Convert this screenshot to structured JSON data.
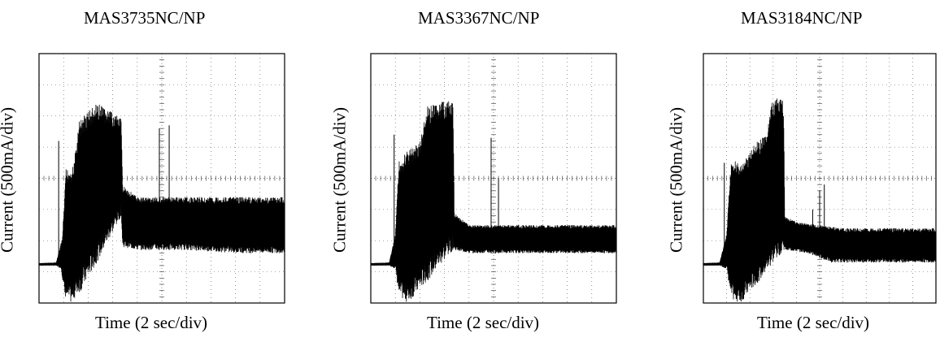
{
  "chart_data": [
    {
      "type": "line",
      "title": "MAS3735NC/NP",
      "xlabel": "Time (2 sec/div)",
      "ylabel": "Current (500mA/div)",
      "xlim": [
        0,
        10
      ],
      "ylim": [
        0,
        8
      ],
      "grid": true,
      "series": [
        {
          "envelope_upper": [
            [
              0,
              1.28
            ],
            [
              0.7,
              1.3
            ],
            [
              0.95,
              2.1
            ],
            [
              1.1,
              4.3
            ],
            [
              1.4,
              4.4
            ],
            [
              1.65,
              5.9
            ],
            [
              2.0,
              6.2
            ],
            [
              2.4,
              6.4
            ],
            [
              3.0,
              6.1
            ],
            [
              3.35,
              5.9
            ],
            [
              3.4,
              3.8
            ],
            [
              4.0,
              3.4
            ],
            [
              6.0,
              3.4
            ],
            [
              8.0,
              3.4
            ],
            [
              10,
              3.4
            ]
          ],
          "envelope_lower": [
            [
              0,
              1.2
            ],
            [
              0.7,
              1.2
            ],
            [
              0.9,
              1.1
            ],
            [
              1.05,
              0.2
            ],
            [
              1.3,
              0.0
            ],
            [
              1.8,
              0.5
            ],
            [
              2.5,
              1.5
            ],
            [
              3.35,
              2.8
            ],
            [
              3.4,
              1.8
            ],
            [
              4.0,
              1.7
            ],
            [
              6.0,
              1.7
            ],
            [
              8.0,
              1.6
            ],
            [
              10,
              1.6
            ]
          ],
          "spikes": [
            [
              0.8,
              5.2
            ],
            [
              1.7,
              5.4
            ],
            [
              4.9,
              5.6
            ],
            [
              5.3,
              5.7
            ]
          ]
        }
      ]
    },
    {
      "type": "line",
      "title": "MAS3367NC/NP",
      "xlabel": "Time (2 sec/div)",
      "ylabel": "Current (500mA/div)",
      "xlim": [
        0,
        10
      ],
      "ylim": [
        0,
        8
      ],
      "grid": true,
      "series": [
        {
          "envelope_upper": [
            [
              0,
              1.28
            ],
            [
              0.75,
              1.3
            ],
            [
              1.0,
              2.2
            ],
            [
              1.15,
              4.6
            ],
            [
              1.5,
              4.9
            ],
            [
              2.0,
              5.2
            ],
            [
              2.3,
              6.3
            ],
            [
              3.1,
              6.5
            ],
            [
              3.35,
              6.4
            ],
            [
              3.4,
              2.9
            ],
            [
              4.0,
              2.5
            ],
            [
              10,
              2.5
            ]
          ],
          "envelope_lower": [
            [
              0,
              1.2
            ],
            [
              0.75,
              1.2
            ],
            [
              1.0,
              1.1
            ],
            [
              1.15,
              0.2
            ],
            [
              1.5,
              0.0
            ],
            [
              2.2,
              0.6
            ],
            [
              3.35,
              1.7
            ],
            [
              3.4,
              1.7
            ],
            [
              4.0,
              1.6
            ],
            [
              10,
              1.6
            ]
          ],
          "spikes": [
            [
              0.95,
              5.4
            ],
            [
              4.9,
              5.3
            ],
            [
              5.2,
              4.0
            ]
          ]
        }
      ]
    },
    {
      "type": "line",
      "title": "MAS3184NC/NP",
      "xlabel": "Time (2 sec/div)",
      "ylabel": "Current (500mA/div)",
      "xlim": [
        0,
        10
      ],
      "ylim": [
        0,
        8
      ],
      "grid": true,
      "series": [
        {
          "envelope_upper": [
            [
              0,
              1.28
            ],
            [
              0.7,
              1.3
            ],
            [
              1.0,
              2.2
            ],
            [
              1.2,
              4.7
            ],
            [
              1.6,
              4.4
            ],
            [
              2.2,
              5.1
            ],
            [
              2.7,
              5.4
            ],
            [
              3.0,
              6.6
            ],
            [
              3.45,
              6.5
            ],
            [
              3.5,
              2.8
            ],
            [
              4.0,
              2.6
            ],
            [
              6.0,
              2.4
            ],
            [
              10,
              2.4
            ]
          ],
          "envelope_lower": [
            [
              0,
              1.2
            ],
            [
              0.7,
              1.2
            ],
            [
              1.0,
              1.1
            ],
            [
              1.2,
              0.1
            ],
            [
              1.6,
              0.0
            ],
            [
              2.4,
              0.7
            ],
            [
              3.45,
              1.7
            ],
            [
              3.5,
              1.7
            ],
            [
              4.5,
              1.6
            ],
            [
              5.5,
              1.3
            ],
            [
              10,
              1.3
            ]
          ],
          "spikes": [
            [
              0.9,
              4.5
            ],
            [
              4.7,
              3.0
            ],
            [
              5.0,
              3.6
            ],
            [
              5.2,
              3.8
            ]
          ]
        }
      ]
    }
  ]
}
